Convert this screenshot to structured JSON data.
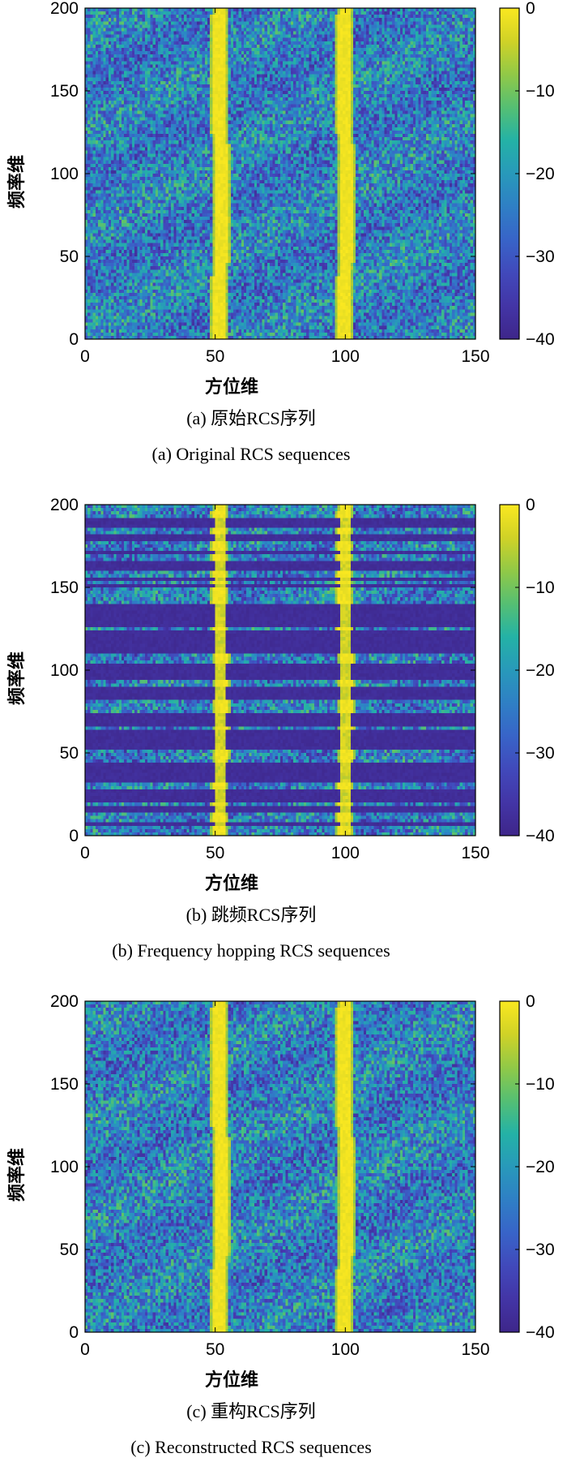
{
  "colors": {
    "viridis_dark": "#3e2a8a",
    "viridis_blue": "#2f8bc4",
    "viridis_teal": "#26b3a6",
    "viridis_green": "#7cc24a",
    "viridis_yellow": "#f9e81f",
    "axis": "#000000"
  },
  "chart_data": [
    {
      "type": "heatmap",
      "xlabel": "方位维",
      "ylabel": "频率维",
      "xlim": [
        0,
        150
      ],
      "ylim": [
        0,
        200
      ],
      "x_ticks": [
        0,
        50,
        100,
        150
      ],
      "y_ticks": [
        0,
        50,
        100,
        150,
        200
      ],
      "colorbar": {
        "range": [
          -40,
          0
        ],
        "ticks": [
          0,
          -10,
          -20,
          -30,
          -40
        ],
        "colormap": "viridis"
      },
      "bright_bands_x": [
        52,
        100
      ],
      "pattern": "noise",
      "caption_cn": "(a) 原始RCS序列",
      "caption_en": "(a) Original RCS sequences"
    },
    {
      "type": "heatmap",
      "xlabel": "方位维",
      "ylabel": "频率维",
      "xlim": [
        0,
        150
      ],
      "ylim": [
        0,
        200
      ],
      "x_ticks": [
        0,
        50,
        100,
        150
      ],
      "y_ticks": [
        0,
        50,
        100,
        150,
        200
      ],
      "colorbar": {
        "range": [
          -40,
          0
        ],
        "ticks": [
          0,
          -10,
          -20,
          -30,
          -40
        ],
        "colormap": "viridis"
      },
      "bright_bands_x": [
        52,
        100
      ],
      "pattern": "hopping",
      "caption_cn": "(b) 跳频RCS序列",
      "caption_en": "(b) Frequency hopping RCS sequences"
    },
    {
      "type": "heatmap",
      "xlabel": "方位维",
      "ylabel": "频率维",
      "xlim": [
        0,
        150
      ],
      "ylim": [
        0,
        200
      ],
      "x_ticks": [
        0,
        50,
        100,
        150
      ],
      "y_ticks": [
        0,
        50,
        100,
        150,
        200
      ],
      "colorbar": {
        "range": [
          -40,
          0
        ],
        "ticks": [
          0,
          -10,
          -20,
          -30,
          -40
        ],
        "colormap": "viridis"
      },
      "bright_bands_x": [
        52,
        100
      ],
      "pattern": "noise",
      "caption_cn": "(c) 重构RCS序列",
      "caption_en": "(c) Reconstructed RCS sequences"
    }
  ]
}
